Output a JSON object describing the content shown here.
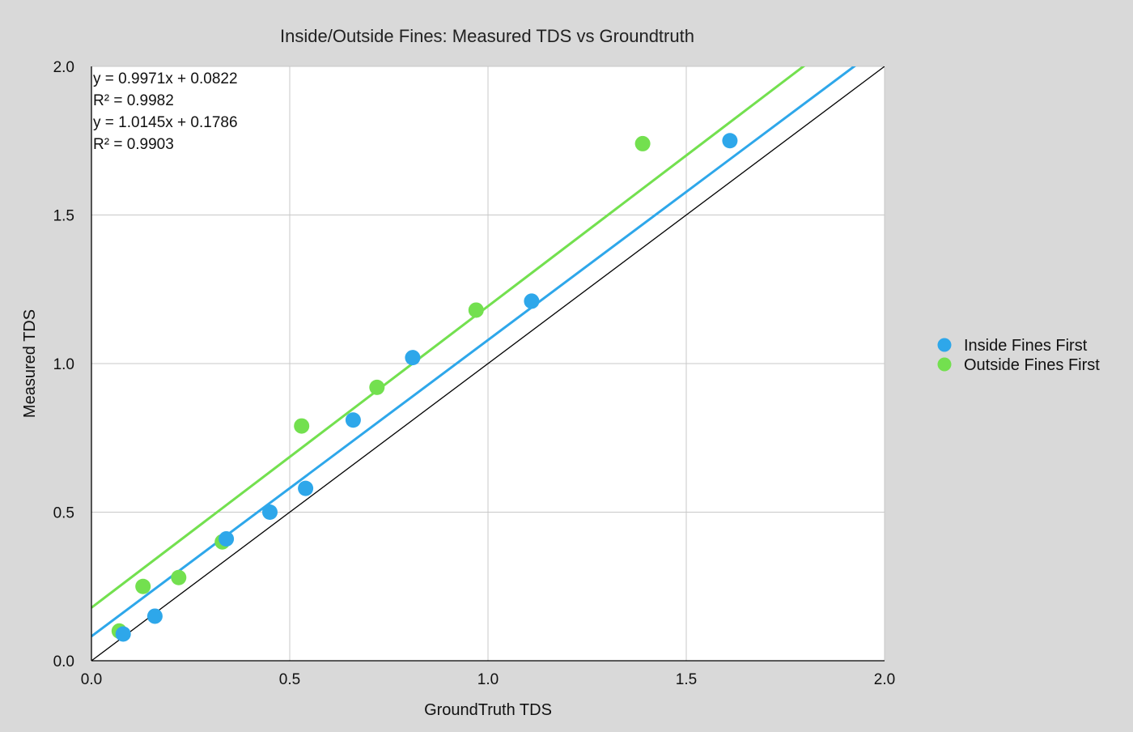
{
  "chart_data": {
    "type": "scatter",
    "title": "Inside/Outside Fines: Measured TDS vs Groundtruth",
    "xlabel": "GroundTruth TDS",
    "ylabel": "Measured TDS",
    "xlim": [
      0,
      2
    ],
    "ylim": [
      0,
      2
    ],
    "x_ticks": [
      "0.0",
      "0.5",
      "1.0",
      "1.5",
      "2.0"
    ],
    "y_ticks": [
      "0.0",
      "0.5",
      "1.0",
      "1.5",
      "2.0"
    ],
    "grid": true,
    "legend_position": "right",
    "equations": [
      "y = 0.9971x + 0.0822",
      "R² = 0.9982",
      "y = 1.0145x + 0.1786",
      "R² = 0.9903"
    ],
    "series": [
      {
        "name": "Inside Fines First",
        "color": "#2ea7ea",
        "points": [
          {
            "x": 0.08,
            "y": 0.09
          },
          {
            "x": 0.16,
            "y": 0.15
          },
          {
            "x": 0.34,
            "y": 0.41
          },
          {
            "x": 0.45,
            "y": 0.5
          },
          {
            "x": 0.54,
            "y": 0.58
          },
          {
            "x": 0.66,
            "y": 0.81
          },
          {
            "x": 0.81,
            "y": 1.02
          },
          {
            "x": 1.11,
            "y": 1.21
          },
          {
            "x": 1.61,
            "y": 1.75
          }
        ],
        "trendline": {
          "slope": 0.9971,
          "intercept": 0.0822
        }
      },
      {
        "name": "Outside Fines First",
        "color": "#73e04f",
        "points": [
          {
            "x": 0.07,
            "y": 0.1
          },
          {
            "x": 0.13,
            "y": 0.25
          },
          {
            "x": 0.22,
            "y": 0.28
          },
          {
            "x": 0.33,
            "y": 0.4
          },
          {
            "x": 0.53,
            "y": 0.79
          },
          {
            "x": 0.72,
            "y": 0.92
          },
          {
            "x": 0.97,
            "y": 1.18
          },
          {
            "x": 1.39,
            "y": 1.74
          }
        ],
        "trendline": {
          "slope": 1.0145,
          "intercept": 0.1786
        }
      }
    ],
    "reference_line": {
      "slope": 1,
      "intercept": 0,
      "color": "#000000"
    }
  }
}
